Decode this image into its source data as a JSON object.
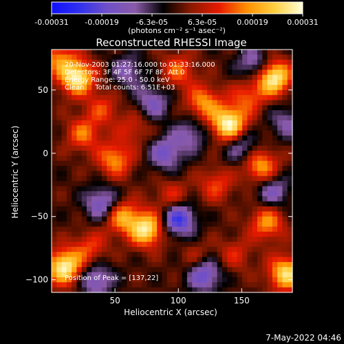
{
  "chart_data": {
    "type": "heatmap",
    "title": "Reconstructed RHESSI Image",
    "xlabel": "Heliocentric X (arcsec)",
    "ylabel": "Heliocentric Y (arcsec)",
    "xlim": [
      0,
      190
    ],
    "ylim": [
      -110,
      82
    ],
    "xticks": [
      50,
      100,
      150
    ],
    "yticks": [
      -100,
      -50,
      0,
      50
    ],
    "grid": false,
    "colorbar": {
      "placement": "top",
      "tick_labels": [
        "-0.00031",
        "-0.00019",
        "-6.3e-05",
        "6.3e-05",
        "0.00019",
        "0.00031"
      ],
      "unit_label": "(photons cm⁻² s⁻¹ asec⁻²)",
      "min": -0.00031,
      "max": 0.00031,
      "stops": [
        "#1010ff",
        "#3030ee",
        "#7050c8",
        "#8a5aa8",
        "#000000",
        "#8a1a00",
        "#e81a00",
        "#ff9000",
        "#ffd040",
        "#ffffd8"
      ]
    },
    "annotations": [
      "20-Nov-2003 01:27:16.000 to 01:33:16.000",
      "Detectors: 3F 4F 5F 6F 7F 8F, Att 0",
      "Energy Range: 25.0 - 50.0 keV",
      "Clean     Total counts: 6.51E+03"
    ],
    "peak_label": "Position of Peak = [137,22]",
    "hotspots": [
      {
        "x": 140,
        "y": 23,
        "value": 0.00031
      },
      {
        "x": 175,
        "y": 60,
        "value": 0.00031
      },
      {
        "x": 20,
        "y": 60,
        "value": 0.00029
      },
      {
        "x": 10,
        "y": -90,
        "value": 0.0003
      },
      {
        "x": 75,
        "y": -60,
        "value": 0.00028
      },
      {
        "x": 55,
        "y": -50,
        "value": 0.0002
      },
      {
        "x": 120,
        "y": 40,
        "value": 0.00018
      },
      {
        "x": 165,
        "y": -10,
        "value": 0.0002
      },
      {
        "x": 185,
        "y": -95,
        "value": 0.00026
      },
      {
        "x": 50,
        "y": -5,
        "value": 0.00018
      },
      {
        "x": 25,
        "y": 15,
        "value": 0.00015
      },
      {
        "x": 170,
        "y": -55,
        "value": 0.00018
      },
      {
        "x": 100,
        "y": 65,
        "value": 0.00014
      },
      {
        "x": 130,
        "y": -25,
        "value": 0.00012
      },
      {
        "x": 95,
        "y": -35,
        "value": 0.00011
      },
      {
        "x": 155,
        "y": 45,
        "value": 0.00013
      },
      {
        "x": 40,
        "y": 35,
        "value": 0.00011
      },
      {
        "x": 30,
        "y": -75,
        "value": 0.00012
      },
      {
        "x": 115,
        "y": -85,
        "value": 0.0001
      },
      {
        "x": 65,
        "y": 20,
        "value": 9e-05
      },
      {
        "x": 5,
        "y": 75,
        "value": 0.00015
      },
      {
        "x": 145,
        "y": -80,
        "value": 9e-05
      },
      {
        "x": 90,
        "y": 0,
        "value": -0.00016
      },
      {
        "x": 120,
        "y": -95,
        "value": -0.00022
      },
      {
        "x": 100,
        "y": -52,
        "value": -0.00024
      },
      {
        "x": 40,
        "y": -40,
        "value": -0.00018
      },
      {
        "x": 160,
        "y": 70,
        "value": -0.00015
      },
      {
        "x": 150,
        "y": 5,
        "value": -0.00013
      },
      {
        "x": 80,
        "y": 40,
        "value": -0.00014
      },
      {
        "x": 35,
        "y": -100,
        "value": -0.00016
      },
      {
        "x": 175,
        "y": -30,
        "value": -0.00014
      },
      {
        "x": 60,
        "y": 65,
        "value": -0.00012
      },
      {
        "x": 185,
        "y": 25,
        "value": -0.00011
      },
      {
        "x": 110,
        "y": 15,
        "value": -0.00012
      }
    ]
  },
  "footer": {
    "timestamp": "7-May-2022 04:46"
  }
}
